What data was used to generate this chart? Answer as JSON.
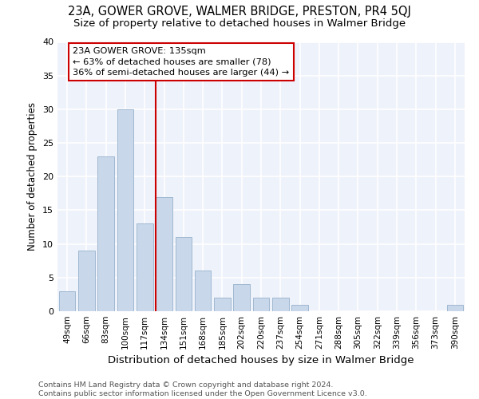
{
  "title": "23A, GOWER GROVE, WALMER BRIDGE, PRESTON, PR4 5QJ",
  "subtitle": "Size of property relative to detached houses in Walmer Bridge",
  "xlabel": "Distribution of detached houses by size in Walmer Bridge",
  "ylabel": "Number of detached properties",
  "bar_color": "#c8d8ea",
  "bar_edge_color": "#a0b8d0",
  "categories": [
    "49sqm",
    "66sqm",
    "83sqm",
    "100sqm",
    "117sqm",
    "134sqm",
    "151sqm",
    "168sqm",
    "185sqm",
    "202sqm",
    "220sqm",
    "237sqm",
    "254sqm",
    "271sqm",
    "288sqm",
    "305sqm",
    "322sqm",
    "339sqm",
    "356sqm",
    "373sqm",
    "390sqm"
  ],
  "values": [
    3,
    9,
    23,
    30,
    13,
    17,
    11,
    6,
    2,
    4,
    2,
    2,
    1,
    0,
    0,
    0,
    0,
    0,
    0,
    0,
    1
  ],
  "vline_index": 5,
  "vline_color": "#cc0000",
  "annotation_line1": "23A GOWER GROVE: 135sqm",
  "annotation_line2": "← 63% of detached houses are smaller (78)",
  "annotation_line3": "36% of semi-detached houses are larger (44) →",
  "annotation_box_color": "#ffffff",
  "annotation_box_edge": "#cc0000",
  "ylim": [
    0,
    40
  ],
  "yticks": [
    0,
    5,
    10,
    15,
    20,
    25,
    30,
    35,
    40
  ],
  "footer": "Contains HM Land Registry data © Crown copyright and database right 2024.\nContains public sector information licensed under the Open Government Licence v3.0.",
  "bg_color": "#eef2fa",
  "grid_color": "#ffffff",
  "title_fontsize": 10.5,
  "subtitle_fontsize": 9.5,
  "tick_fontsize": 7.5,
  "ylabel_fontsize": 8.5,
  "xlabel_fontsize": 9.5,
  "footer_fontsize": 6.8
}
